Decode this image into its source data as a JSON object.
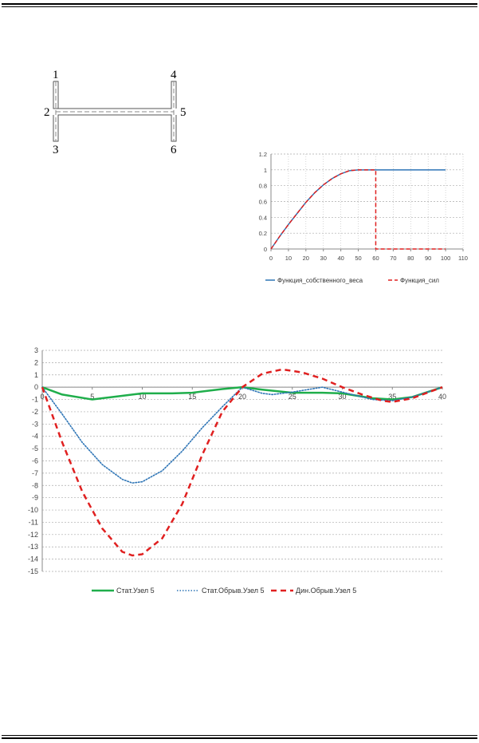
{
  "diagram": {
    "nodes": [
      "1",
      "2",
      "3",
      "4",
      "5",
      "6"
    ]
  },
  "chart_data": [
    {
      "type": "line",
      "title": "",
      "xlabel": "",
      "ylabel": "",
      "xlim": [
        0,
        110
      ],
      "ylim": [
        0,
        1.2
      ],
      "x_ticks": [
        "0",
        "10",
        "20",
        "30",
        "40",
        "50",
        "60",
        "70",
        "80",
        "90",
        "100",
        "110"
      ],
      "y_ticks": [
        "0",
        "0.2",
        "0.4",
        "0.6",
        "0.8",
        "1",
        "1.2"
      ],
      "grid": true,
      "legend_position": "bottom",
      "series": [
        {
          "name": "Функция_собственного_веса",
          "color": "#2e75b6",
          "style": "solid",
          "x": [
            0,
            5,
            10,
            15,
            20,
            25,
            30,
            35,
            40,
            45,
            50,
            60,
            100
          ],
          "y": [
            0,
            0.16,
            0.31,
            0.45,
            0.59,
            0.71,
            0.81,
            0.89,
            0.95,
            0.99,
            1,
            1,
            1
          ]
        },
        {
          "name": "Функция_сил",
          "color": "#e02020",
          "style": "dashed",
          "x": [
            0,
            5,
            10,
            15,
            20,
            25,
            30,
            35,
            40,
            45,
            50,
            60,
            60,
            100
          ],
          "y": [
            0,
            0.16,
            0.31,
            0.45,
            0.59,
            0.71,
            0.81,
            0.89,
            0.95,
            0.99,
            1,
            1,
            0,
            0
          ]
        }
      ]
    },
    {
      "type": "line",
      "title": "",
      "xlabel": "",
      "ylabel": "",
      "xlim": [
        0,
        40
      ],
      "ylim": [
        -15,
        3
      ],
      "x_ticks": [
        "0",
        "5",
        "10",
        "15",
        "20",
        "25",
        "30",
        "35",
        "40"
      ],
      "y_ticks": [
        "3",
        "2",
        "1",
        "0",
        "-1",
        "-2",
        "-3",
        "-4",
        "-5",
        "-6",
        "-7",
        "-8",
        "-9",
        "-10",
        "-11",
        "-12",
        "-13",
        "-14",
        "-15"
      ],
      "grid": true,
      "legend_position": "bottom",
      "series": [
        {
          "name": "Стат.Узел 5",
          "color": "#1fae4b",
          "style": "solid",
          "x": [
            0,
            2,
            5,
            7,
            10,
            13,
            15,
            18,
            20,
            22,
            25,
            28,
            30,
            33,
            35,
            37,
            40
          ],
          "y": [
            0,
            -0.6,
            -1,
            -0.8,
            -0.5,
            -0.5,
            -0.45,
            -0.15,
            0,
            -0.2,
            -0.45,
            -0.45,
            -0.5,
            -0.9,
            -1,
            -0.8,
            0
          ]
        },
        {
          "name": "Стат.Обрыв.Узел 5",
          "color": "#2e75b6",
          "style": "dotted",
          "x": [
            0,
            2,
            4,
            6,
            8,
            9,
            10,
            12,
            14,
            16,
            18,
            20,
            22,
            23,
            25,
            28,
            30,
            33,
            35,
            37,
            40
          ],
          "y": [
            0,
            -2.2,
            -4.5,
            -6.3,
            -7.5,
            -7.8,
            -7.7,
            -6.8,
            -5.2,
            -3.3,
            -1.6,
            0,
            -0.5,
            -0.6,
            -0.4,
            0,
            -0.4,
            -1.0,
            -1.1,
            -0.8,
            0
          ]
        },
        {
          "name": "Дин.Обрыв.Узел 5",
          "color": "#e02020",
          "style": "dashed",
          "x": [
            0,
            2,
            4,
            6,
            8,
            9,
            10,
            12,
            14,
            16,
            18,
            20,
            22,
            24,
            26,
            28,
            30,
            32,
            34,
            35,
            37,
            40
          ],
          "y": [
            0,
            -4.5,
            -8.5,
            -11.5,
            -13.4,
            -13.7,
            -13.6,
            -12.3,
            -9.5,
            -5.5,
            -2,
            0,
            1.1,
            1.45,
            1.2,
            0.7,
            0,
            -0.6,
            -1.1,
            -1.2,
            -0.9,
            0
          ]
        }
      ]
    }
  ]
}
